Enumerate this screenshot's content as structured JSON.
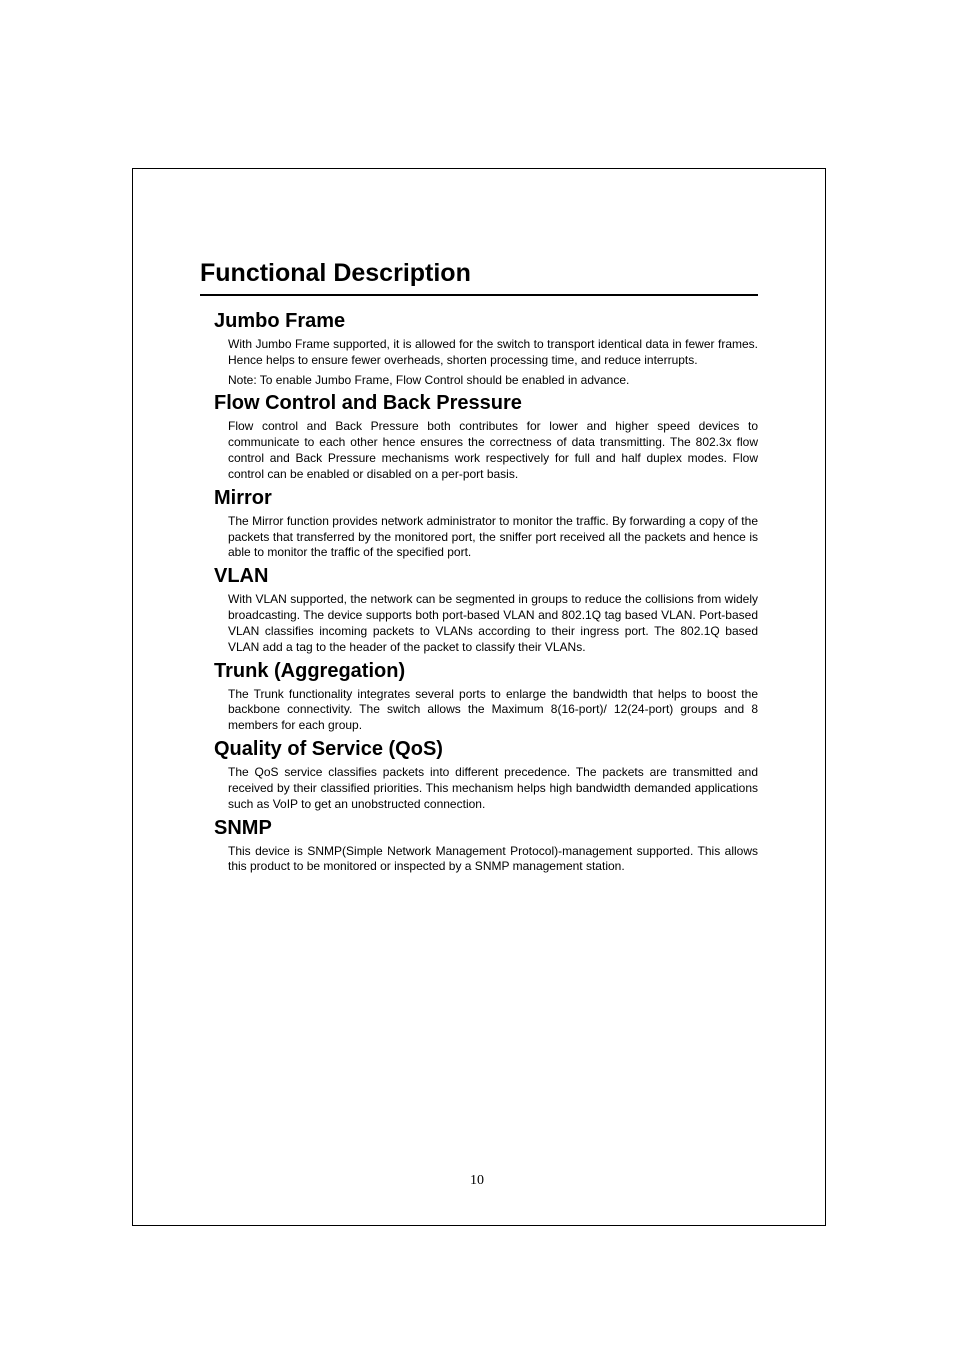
{
  "page": {
    "number": "10"
  },
  "main_title": "Functional Description",
  "sections": {
    "jumbo": {
      "title": "Jumbo Frame",
      "p1": "With Jumbo Frame supported, it is allowed for the switch to transport identical data in fewer frames. Hence helps to ensure fewer overheads, shorten processing time, and reduce interrupts.",
      "p2": "Note: To enable Jumbo Frame, Flow Control should be enabled in advance."
    },
    "flow": {
      "title": "Flow Control and Back Pressure",
      "p1": "Flow control and Back Pressure both contributes for lower and higher speed devices to communicate to each other hence ensures the correctness of data transmitting. The 802.3x flow control and Back Pressure mechanisms work respectively for full and half duplex modes. Flow control can be enabled or disabled on a per-port basis."
    },
    "mirror": {
      "title": "Mirror",
      "p1": "The Mirror function provides network administrator to monitor the traffic. By forwarding a copy of the packets that transferred by the monitored port, the sniffer port received all the packets and hence is able to monitor the traffic of the specified port."
    },
    "vlan": {
      "title": "VLAN",
      "p1": "With VLAN supported, the network can be segmented in groups to reduce the collisions from widely broadcasting. The device supports both port-based VLAN and 802.1Q tag based VLAN. Port-based VLAN classifies incoming packets to VLANs according to their ingress port. The 802.1Q based VLAN add a tag to the header of the packet to classify their VLANs."
    },
    "trunk": {
      "title": "Trunk (Aggregation)",
      "p1": "The Trunk functionality integrates several ports to enlarge the bandwidth that helps to boost the backbone connectivity. The switch allows the Maximum 8(16-port)/ 12(24-port) groups and 8 members for each group."
    },
    "qos": {
      "title": "Quality of Service (QoS)",
      "p1": "The QoS service classifies packets into different precedence. The packets are transmitted and received by their classified priorities. This mechanism helps high bandwidth demanded applications such as VoIP to get an unobstructed connection."
    },
    "snmp": {
      "title": "SNMP",
      "p1": "This device is SNMP(Simple Network Management Protocol)-management supported. This allows this product to be monitored or inspected by a SNMP management station."
    }
  }
}
